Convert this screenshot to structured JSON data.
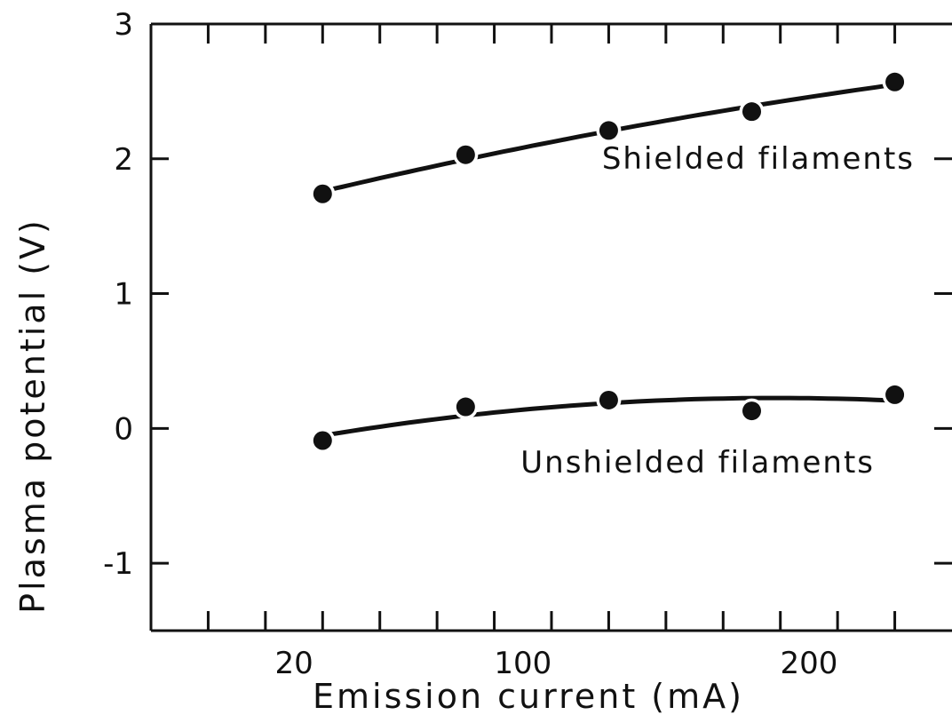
{
  "chart_data": {
    "type": "scatter",
    "title": "",
    "xlabel": "Emission current  (mA)",
    "ylabel": "Plasma potential  (V)",
    "xlim": [
      -30,
      250
    ],
    "ylim": [
      -1.5,
      3
    ],
    "x_tick_labels": [
      {
        "value": 20,
        "label": "20"
      },
      {
        "value": 100,
        "label": "100"
      },
      {
        "value": 200,
        "label": "200"
      }
    ],
    "y_tick_labels": [
      {
        "value": 3,
        "label": "3"
      },
      {
        "value": 2,
        "label": "2"
      },
      {
        "value": 1,
        "label": "1"
      },
      {
        "value": 0,
        "label": "0"
      },
      {
        "value": -1,
        "label": "-1"
      }
    ],
    "grid": false,
    "legend": "none",
    "series": [
      {
        "name": "Shielded filaments",
        "x": [
          30,
          80,
          130,
          180,
          230
        ],
        "y": [
          1.74,
          2.03,
          2.21,
          2.35,
          2.57
        ]
      },
      {
        "name": "Unshielded filaments",
        "x": [
          30,
          80,
          130,
          180,
          230
        ],
        "y": [
          -0.09,
          0.16,
          0.21,
          0.13,
          0.25
        ]
      }
    ],
    "annotations": [
      {
        "text": "Shielded filaments",
        "series": 0
      },
      {
        "text": "Unshielded filaments",
        "series": 1
      }
    ],
    "colors": {
      "ink": "#111111",
      "background": "#ffffff"
    }
  }
}
